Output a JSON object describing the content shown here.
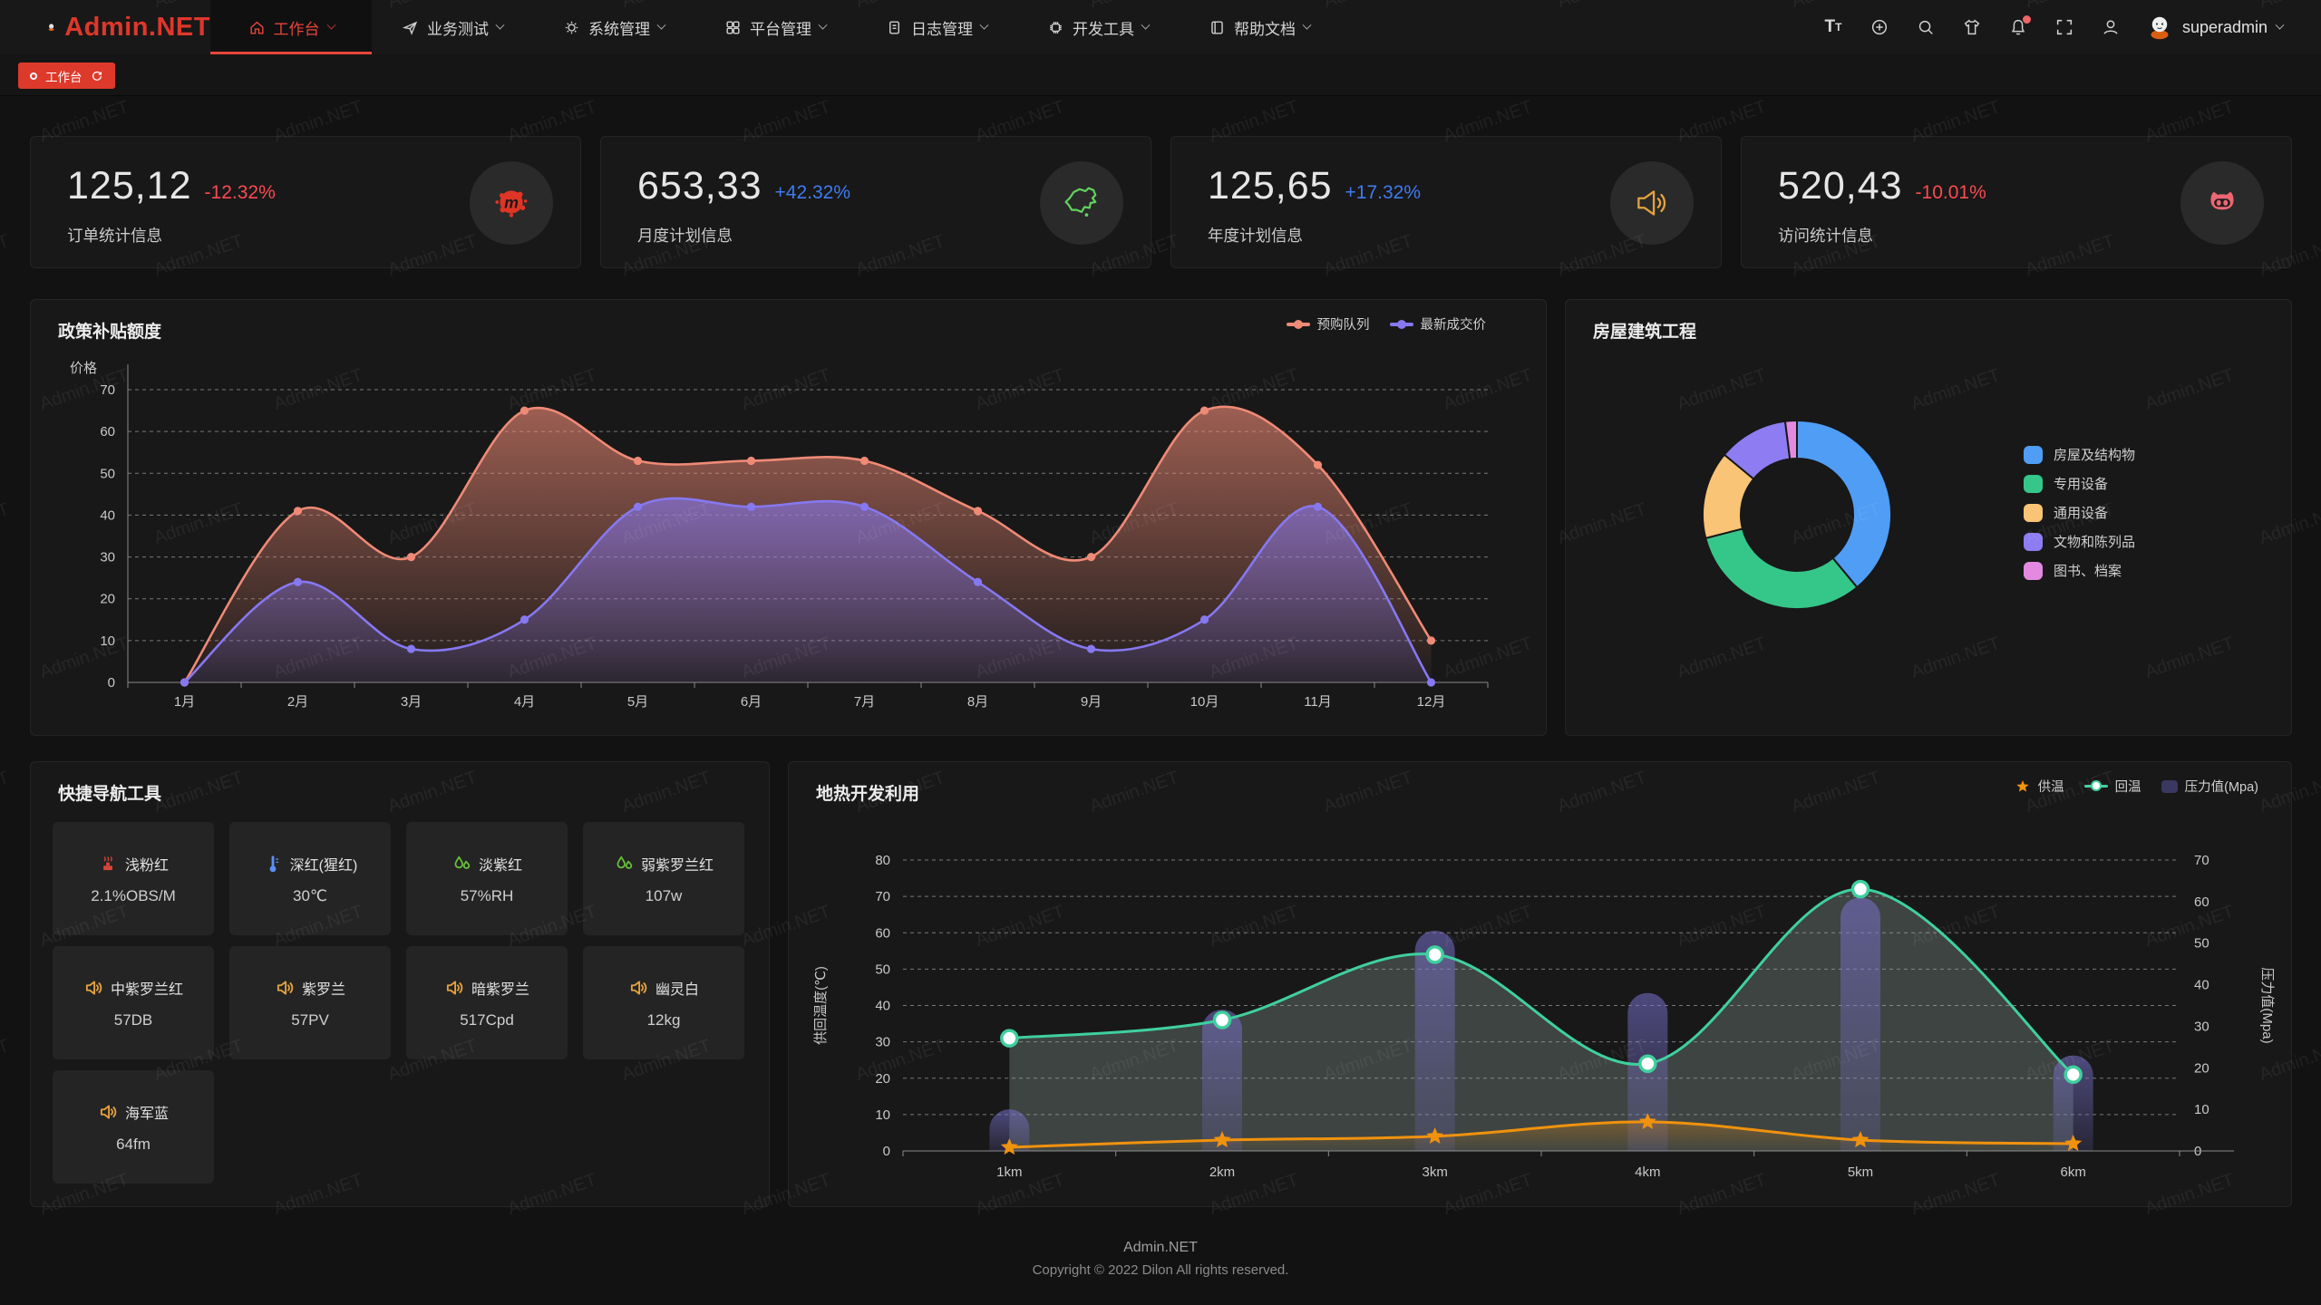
{
  "brand": {
    "name": "Admin.NET"
  },
  "nav": {
    "items": [
      {
        "label": "工作台",
        "icon": "home-icon",
        "active": true
      },
      {
        "label": "业务测试",
        "icon": "send-icon",
        "active": false
      },
      {
        "label": "系统管理",
        "icon": "gear-icon",
        "active": false
      },
      {
        "label": "平台管理",
        "icon": "grid-icon",
        "active": false
      },
      {
        "label": "日志管理",
        "icon": "log-icon",
        "active": false
      },
      {
        "label": "开发工具",
        "icon": "chip-icon",
        "active": false
      },
      {
        "label": "帮助文档",
        "icon": "book-icon",
        "active": false
      }
    ]
  },
  "toolbar": {
    "icons": [
      "font-size-icon",
      "language-icon",
      "search-icon",
      "theme-icon",
      "notification-bell-icon",
      "fullscreen-icon",
      "profile-icon"
    ],
    "notification_badge": true
  },
  "user": {
    "name": "superadmin"
  },
  "tabs": {
    "items": [
      {
        "label": "工作台",
        "active": true
      }
    ]
  },
  "stats": [
    {
      "value": "125,12",
      "delta": "-12.32%",
      "trend": "down",
      "label": "订单统计信息",
      "icon": "paint-splat-icon"
    },
    {
      "value": "653,33",
      "delta": "+42.32%",
      "trend": "up",
      "label": "月度计划信息",
      "icon": "china-map-icon"
    },
    {
      "value": "125,65",
      "delta": "+17.32%",
      "trend": "up",
      "label": "年度计划信息",
      "icon": "speaker-icon"
    },
    {
      "value": "520,43",
      "delta": "-10.01%",
      "trend": "down",
      "label": "访问统计信息",
      "icon": "cat-icon"
    }
  ],
  "charts": {
    "policy": {
      "type": "area",
      "title": "政策补贴额度",
      "ylabel": "价格",
      "ylim": [
        0,
        70
      ],
      "ytick_step": 10,
      "categories": [
        "1月",
        "2月",
        "3月",
        "4月",
        "5月",
        "6月",
        "7月",
        "8月",
        "9月",
        "10月",
        "11月",
        "12月"
      ],
      "series": [
        {
          "name": "预购队列",
          "color": "#ef8a76",
          "values": [
            0,
            41,
            30,
            65,
            53,
            53,
            53,
            41,
            30,
            65,
            52,
            10
          ]
        },
        {
          "name": "最新成交价",
          "color": "#8678f0",
          "values": [
            0,
            24,
            8,
            15,
            42,
            42,
            42,
            24,
            8,
            15,
            42,
            0
          ]
        }
      ]
    },
    "building": {
      "type": "pie",
      "title": "房屋建筑工程",
      "items": [
        {
          "label": "房屋及结构物",
          "value": 39,
          "color": "#4f9df5"
        },
        {
          "label": "专用设备",
          "value": 32,
          "color": "#35c78a"
        },
        {
          "label": "通用设备",
          "value": 15,
          "color": "#f9c476"
        },
        {
          "label": "文物和陈列品",
          "value": 12,
          "color": "#8d7cf2"
        },
        {
          "label": "图书、档案",
          "value": 2,
          "color": "#e38ae0"
        }
      ]
    },
    "geothermal": {
      "type": "bar",
      "title": "地热开发利用",
      "categories": [
        "1km",
        "2km",
        "3km",
        "4km",
        "5km",
        "6km"
      ],
      "y_left": {
        "label": "供回温度(℃)",
        "min": 0,
        "max": 80,
        "step": 10
      },
      "y_right": {
        "label": "压力值(Mpa)",
        "min": 0,
        "max": 70,
        "step": 10
      },
      "series": [
        {
          "name": "供温",
          "type": "line-star",
          "color": "#f0920e",
          "axis": "left",
          "values": [
            1,
            3,
            4,
            8,
            3,
            2
          ]
        },
        {
          "name": "回温",
          "type": "line-dot",
          "color": "#3fd09e",
          "axis": "left",
          "values": [
            31,
            36,
            54,
            24,
            72,
            21
          ]
        },
        {
          "name": "压力值(Mpa)",
          "type": "bar",
          "color": "#6f68b8",
          "axis": "right",
          "values": [
            10,
            34,
            53,
            38,
            61,
            23
          ]
        }
      ]
    }
  },
  "quick_nav": {
    "title": "快捷导航工具",
    "items": [
      {
        "label": "浅粉红",
        "value": "2.1%OBS/M",
        "icon": "brazier-icon"
      },
      {
        "label": "深红(猩红)",
        "value": "30℃",
        "icon": "thermometer-icon"
      },
      {
        "label": "淡紫红",
        "value": "57%RH",
        "icon": "droplets-icon"
      },
      {
        "label": "弱紫罗兰红",
        "value": "107w",
        "icon": "droplets-icon"
      },
      {
        "label": "中紫罗兰红",
        "value": "57DB",
        "icon": "speaker-icon"
      },
      {
        "label": "紫罗兰",
        "value": "57PV",
        "icon": "speaker-icon"
      },
      {
        "label": "暗紫罗兰",
        "value": "517Cpd",
        "icon": "speaker-icon"
      },
      {
        "label": "幽灵白",
        "value": "12kg",
        "icon": "speaker-icon"
      },
      {
        "label": "海军蓝",
        "value": "64fm",
        "icon": "speaker-icon"
      }
    ]
  },
  "footer": {
    "line1": "Admin.NET",
    "line2": "Copyright © 2022 Dilon All rights reserved."
  },
  "watermark": "Admin.NET",
  "colors": {
    "primary": "#df372b",
    "delta_up": "#3f7bf0",
    "delta_down": "#fb4a52",
    "panel_bg": "#181818"
  }
}
